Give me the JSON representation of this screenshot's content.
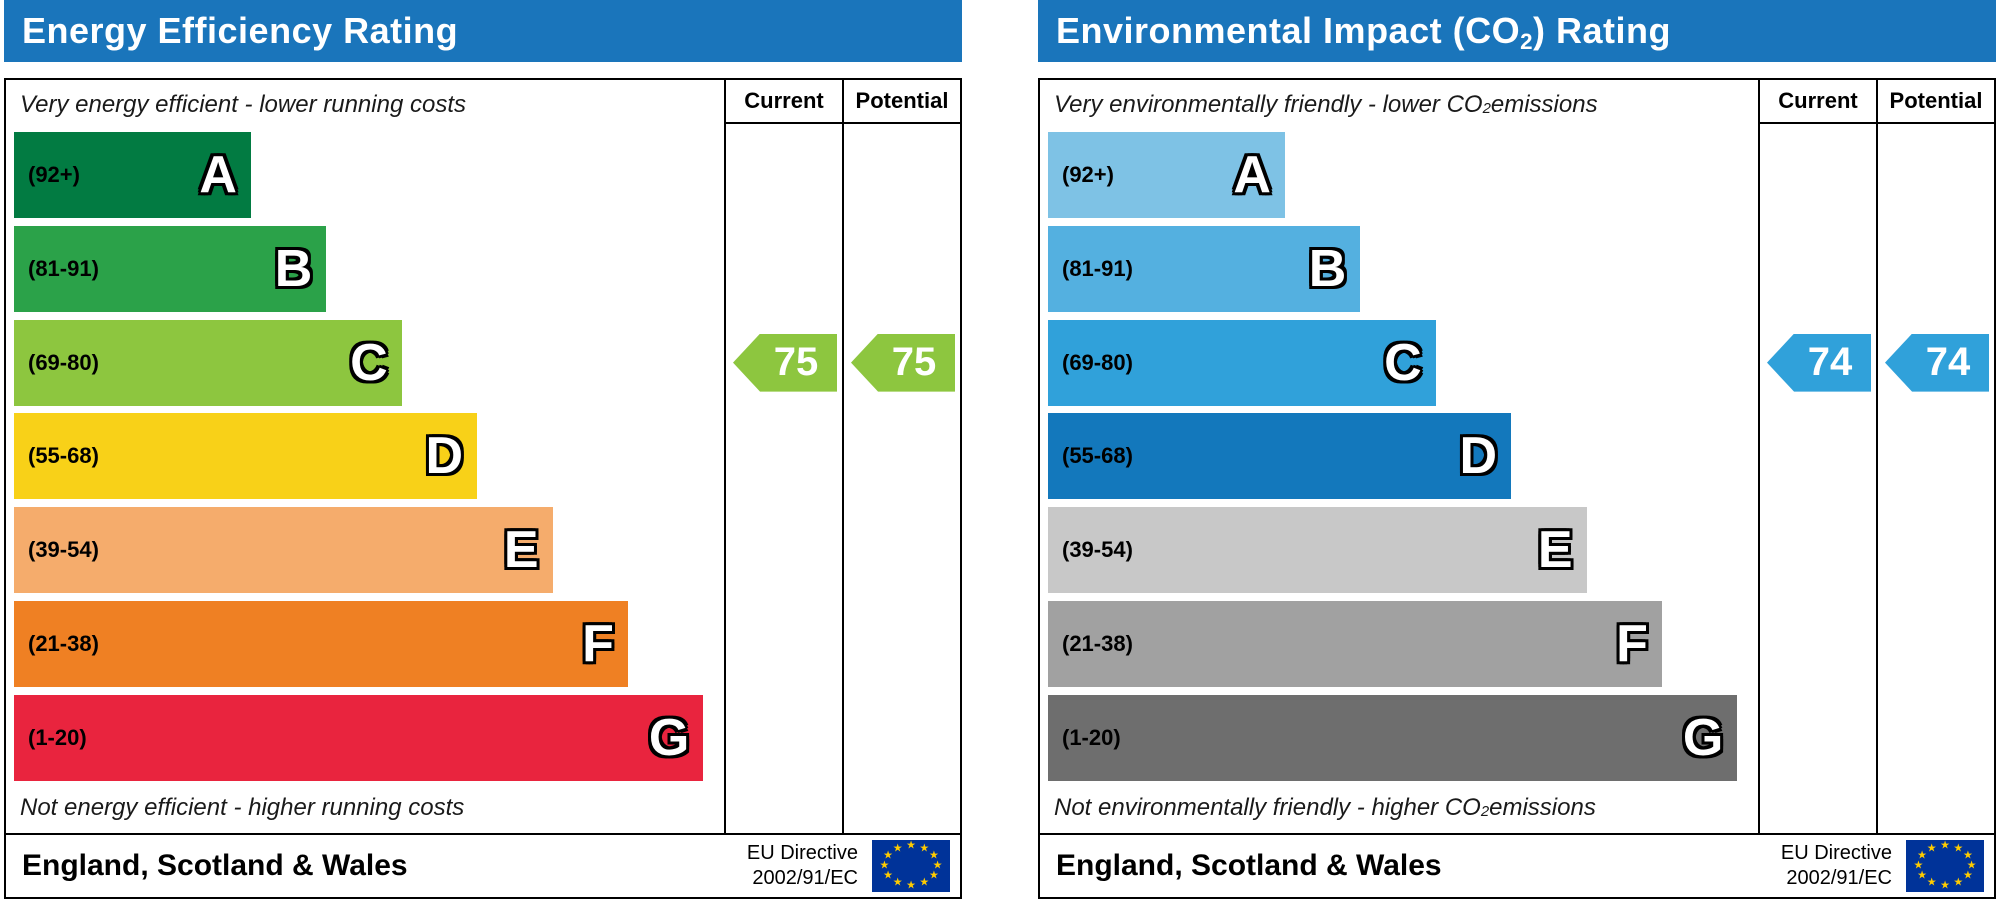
{
  "chart_data": [
    {
      "type": "bar",
      "title": "Energy Efficiency Rating",
      "categories": [
        "A",
        "B",
        "C",
        "D",
        "E",
        "F",
        "G"
      ],
      "band_ranges": [
        "92+",
        "81-91",
        "69-80",
        "55-68",
        "39-54",
        "21-38",
        "1-20"
      ],
      "band_colors": [
        "#027b42",
        "#2ba249",
        "#8dc63f",
        "#f8d118",
        "#f5ac6c",
        "#ef8023",
        "#e9243e"
      ],
      "series": [
        {
          "name": "Current",
          "values": [
            75
          ]
        },
        {
          "name": "Potential",
          "values": [
            75
          ]
        }
      ],
      "current_band": "C",
      "potential_band": "C",
      "scale": [
        1,
        100
      ],
      "annotations": [
        "Very energy efficient - lower running costs",
        "Not energy efficient - higher running costs",
        "England, Scotland & Wales",
        "EU Directive 2002/91/EC"
      ]
    },
    {
      "type": "bar",
      "title": "Environmental Impact (CO2) Rating",
      "categories": [
        "A",
        "B",
        "C",
        "D",
        "E",
        "F",
        "G"
      ],
      "band_ranges": [
        "92+",
        "81-91",
        "69-80",
        "55-68",
        "39-54",
        "21-38",
        "1-20"
      ],
      "band_colors": [
        "#7ec2e5",
        "#54b0e0",
        "#30a1da",
        "#1378bc",
        "#c8c8c8",
        "#a1a1a1",
        "#6e6e6e"
      ],
      "series": [
        {
          "name": "Current",
          "values": [
            74
          ]
        },
        {
          "name": "Potential",
          "values": [
            74
          ]
        }
      ],
      "current_band": "C",
      "potential_band": "C",
      "scale": [
        1,
        100
      ],
      "annotations": [
        "Very environmentally friendly - lower CO2 emissions",
        "Not environmentally friendly - higher CO2 emissions",
        "England, Scotland & Wales",
        "EU Directive 2002/91/EC"
      ]
    }
  ],
  "charts": [
    {
      "title": {
        "pre": "Energy Efficiency Rating",
        "sub": "",
        "post": ""
      },
      "header_color": "#1a75bb",
      "col_headers": {
        "current": "Current",
        "potential": "Potential"
      },
      "top_note": {
        "pre": "Very energy efficient - lower running costs",
        "sub": "",
        "post": ""
      },
      "bottom_note": {
        "pre": "Not energy efficient - higher running costs",
        "sub": "",
        "post": ""
      },
      "bands": [
        {
          "letter": "A",
          "range": "(92+)",
          "color": "#027b42",
          "width_pct": 33
        },
        {
          "letter": "B",
          "range": "(81-91)",
          "color": "#2ba249",
          "width_pct": 43.5
        },
        {
          "letter": "C",
          "range": "(69-80)",
          "color": "#8dc63f",
          "width_pct": 54
        },
        {
          "letter": "D",
          "range": "(55-68)",
          "color": "#f8d118",
          "width_pct": 64.5
        },
        {
          "letter": "E",
          "range": "(39-54)",
          "color": "#f5ac6c",
          "width_pct": 75
        },
        {
          "letter": "F",
          "range": "(21-38)",
          "color": "#ef8023",
          "width_pct": 85.5
        },
        {
          "letter": "G",
          "range": "(1-20)",
          "color": "#e9243e",
          "width_pct": 96
        }
      ],
      "current": {
        "value": 75,
        "band_index": 2,
        "color": "#8dc63f"
      },
      "potential": {
        "value": 75,
        "band_index": 2,
        "color": "#8dc63f"
      },
      "footer": {
        "region": "England, Scotland & Wales",
        "directive_line1": "EU Directive",
        "directive_line2": "2002/91/EC"
      }
    },
    {
      "title": {
        "pre": "Environmental Impact (CO",
        "sub": "2",
        "post": ") Rating"
      },
      "header_color": "#1a75bb",
      "col_headers": {
        "current": "Current",
        "potential": "Potential"
      },
      "top_note": {
        "pre": "Very environmentally friendly - lower CO",
        "sub": "2",
        "post": " emissions"
      },
      "bottom_note": {
        "pre": "Not environmentally friendly - higher CO",
        "sub": "2",
        "post": " emissions"
      },
      "bands": [
        {
          "letter": "A",
          "range": "(92+)",
          "color": "#7ec2e5",
          "width_pct": 33
        },
        {
          "letter": "B",
          "range": "(81-91)",
          "color": "#54b0e0",
          "width_pct": 43.5
        },
        {
          "letter": "C",
          "range": "(69-80)",
          "color": "#30a1da",
          "width_pct": 54
        },
        {
          "letter": "D",
          "range": "(55-68)",
          "color": "#1378bc",
          "width_pct": 64.5
        },
        {
          "letter": "E",
          "range": "(39-54)",
          "color": "#c8c8c8",
          "width_pct": 75
        },
        {
          "letter": "F",
          "range": "(21-38)",
          "color": "#a1a1a1",
          "width_pct": 85.5
        },
        {
          "letter": "G",
          "range": "(1-20)",
          "color": "#6e6e6e",
          "width_pct": 96
        }
      ],
      "current": {
        "value": 74,
        "band_index": 2,
        "color": "#30a1da"
      },
      "potential": {
        "value": 74,
        "band_index": 2,
        "color": "#30a1da"
      },
      "footer": {
        "region": "England, Scotland & Wales",
        "directive_line1": "EU Directive",
        "directive_line2": "2002/91/EC"
      }
    }
  ]
}
